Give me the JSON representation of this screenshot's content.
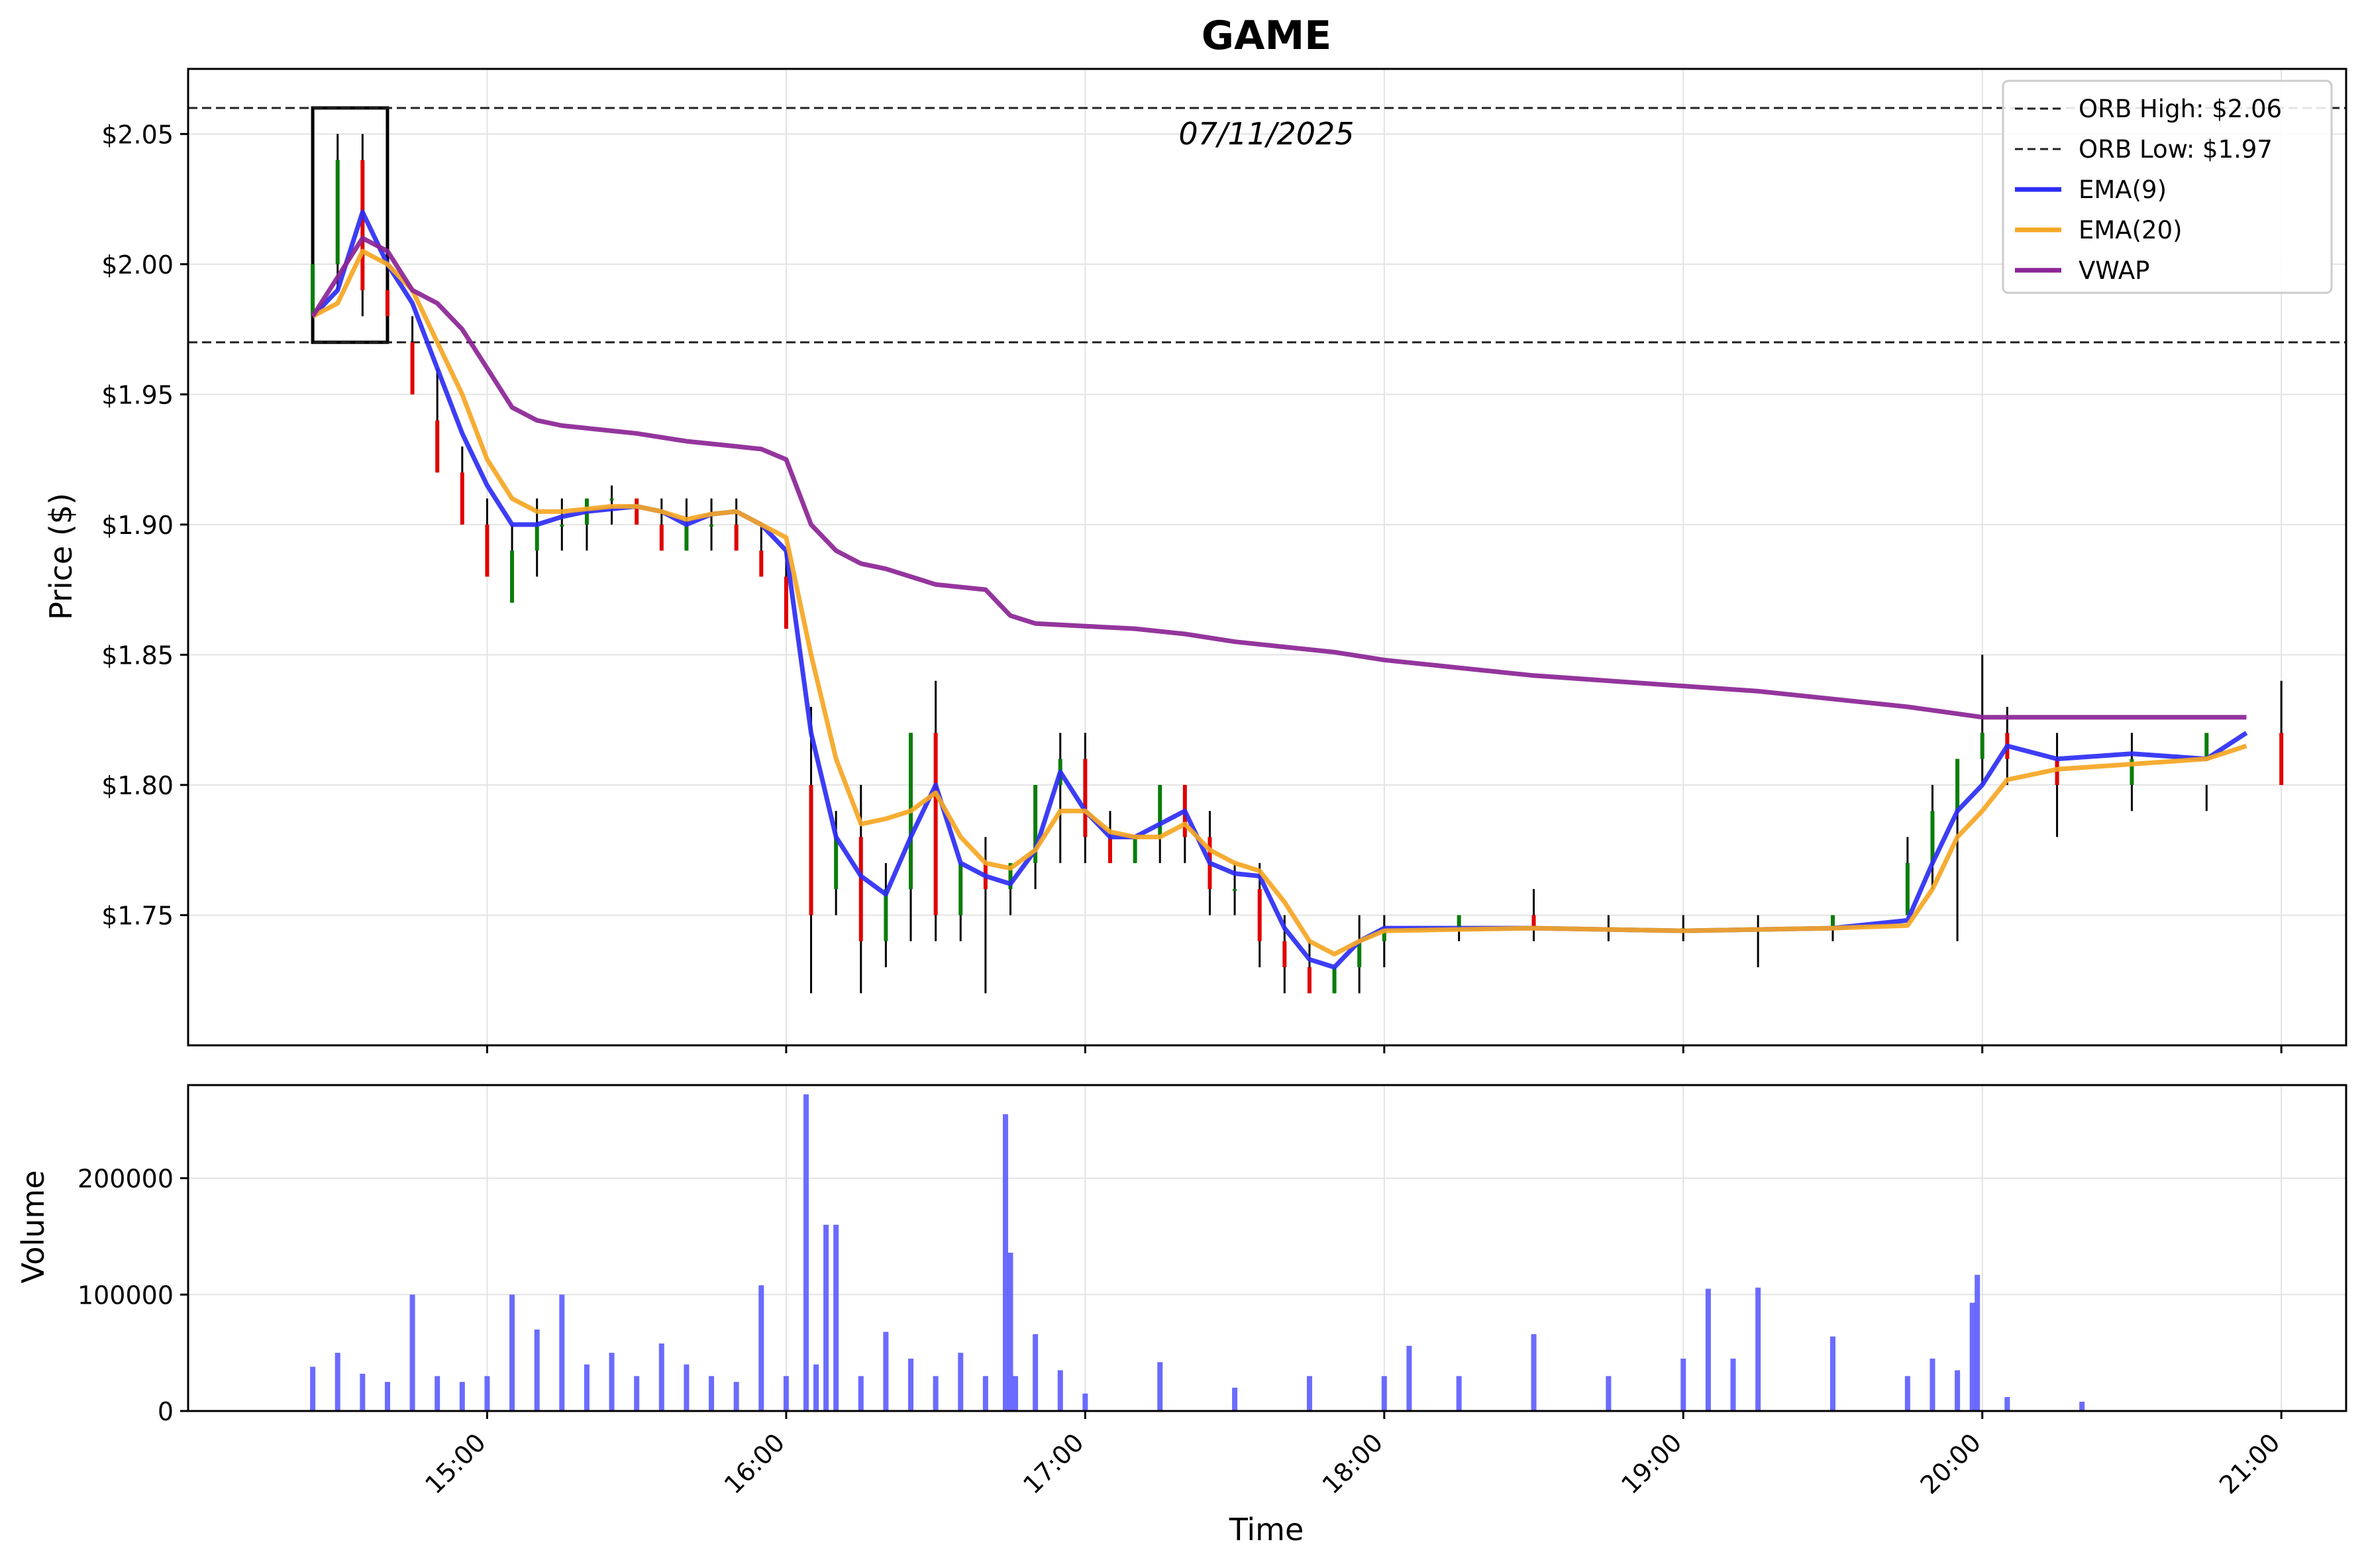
{
  "chart_data": [
    {
      "type": "candlestick",
      "title": "GAME",
      "annotation": "07/11/2025",
      "ylabel": "Price ($)",
      "ylim": [
        1.7,
        2.075
      ],
      "ytick_values": [
        1.75,
        1.8,
        1.85,
        1.9,
        1.95,
        2.0,
        2.05
      ],
      "ytick_labels": [
        "$1.75",
        "$1.80",
        "$1.85",
        "$1.90",
        "$1.95",
        "$2.00",
        "$2.05"
      ],
      "xlim": [
        "14:00",
        "21:13"
      ],
      "xtick_values": [
        "15:00",
        "16:00",
        "17:00",
        "18:00",
        "19:00",
        "20:00",
        "21:00"
      ],
      "grid": true,
      "legend_position": "top-right",
      "orb": {
        "high": 2.06,
        "low": 1.97,
        "box_start": "14:25",
        "box_end": "14:40",
        "label_high": "ORB High: $2.06",
        "label_low": "ORB Low: $1.97"
      },
      "candles": {
        "x": [
          "14:25",
          "14:30",
          "14:35",
          "14:40",
          "14:45",
          "14:50",
          "14:55",
          "15:00",
          "15:05",
          "15:10",
          "15:15",
          "15:20",
          "15:25",
          "15:30",
          "15:35",
          "15:40",
          "15:45",
          "15:50",
          "15:55",
          "16:00",
          "16:05",
          "16:10",
          "16:15",
          "16:20",
          "16:25",
          "16:30",
          "16:35",
          "16:40",
          "16:45",
          "16:50",
          "16:55",
          "17:00",
          "17:05",
          "17:10",
          "17:15",
          "17:20",
          "17:25",
          "17:30",
          "17:35",
          "17:40",
          "17:45",
          "17:50",
          "17:55",
          "18:00",
          "18:15",
          "18:30",
          "18:45",
          "19:00",
          "19:15",
          "19:30",
          "19:45",
          "19:50",
          "19:55",
          "20:00",
          "20:05",
          "20:15",
          "20:30",
          "20:45",
          "21:00"
        ],
        "open": [
          1.98,
          2.0,
          2.04,
          1.99,
          1.97,
          1.94,
          1.92,
          1.9,
          1.87,
          1.89,
          1.9,
          1.9,
          1.91,
          1.91,
          1.9,
          1.89,
          1.9,
          1.9,
          1.89,
          1.88,
          1.8,
          1.76,
          1.78,
          1.74,
          1.76,
          1.82,
          1.75,
          1.77,
          1.76,
          1.77,
          1.8,
          1.81,
          1.78,
          1.77,
          1.78,
          1.8,
          1.78,
          1.76,
          1.76,
          1.74,
          1.73,
          1.72,
          1.73,
          1.74,
          1.745,
          1.75,
          1.745,
          1.745,
          1.745,
          1.745,
          1.75,
          1.77,
          1.79,
          1.81,
          1.82,
          1.81,
          1.8,
          1.81,
          1.82
        ],
        "high": [
          2.0,
          2.05,
          2.05,
          2.0,
          1.98,
          1.96,
          1.93,
          1.91,
          1.9,
          1.91,
          1.91,
          1.91,
          1.915,
          1.91,
          1.91,
          1.91,
          1.91,
          1.91,
          1.9,
          1.89,
          1.83,
          1.79,
          1.8,
          1.77,
          1.82,
          1.84,
          1.77,
          1.78,
          1.77,
          1.79,
          1.82,
          1.82,
          1.79,
          1.78,
          1.8,
          1.8,
          1.79,
          1.77,
          1.77,
          1.75,
          1.74,
          1.73,
          1.75,
          1.75,
          1.75,
          1.76,
          1.75,
          1.75,
          1.75,
          1.75,
          1.78,
          1.8,
          1.81,
          1.85,
          1.83,
          1.82,
          1.82,
          1.8,
          1.84
        ],
        "low": [
          1.97,
          1.99,
          1.98,
          1.97,
          1.95,
          1.92,
          1.9,
          1.88,
          1.87,
          1.88,
          1.89,
          1.89,
          1.9,
          1.9,
          1.89,
          1.89,
          1.89,
          1.89,
          1.88,
          1.86,
          1.72,
          1.75,
          1.72,
          1.73,
          1.74,
          1.74,
          1.74,
          1.72,
          1.75,
          1.76,
          1.77,
          1.77,
          1.77,
          1.77,
          1.77,
          1.77,
          1.75,
          1.75,
          1.73,
          1.72,
          1.72,
          1.72,
          1.72,
          1.73,
          1.74,
          1.74,
          1.74,
          1.74,
          1.73,
          1.74,
          1.75,
          1.76,
          1.74,
          1.8,
          1.8,
          1.78,
          1.79,
          1.79,
          1.8
        ],
        "close": [
          2.0,
          2.04,
          1.99,
          1.98,
          1.95,
          1.92,
          1.9,
          1.88,
          1.89,
          1.9,
          1.9,
          1.91,
          1.91,
          1.9,
          1.89,
          1.9,
          1.9,
          1.89,
          1.88,
          1.86,
          1.75,
          1.78,
          1.74,
          1.76,
          1.82,
          1.75,
          1.77,
          1.76,
          1.77,
          1.8,
          1.81,
          1.78,
          1.77,
          1.78,
          1.8,
          1.78,
          1.76,
          1.76,
          1.74,
          1.73,
          1.72,
          1.73,
          1.74,
          1.745,
          1.75,
          1.745,
          1.745,
          1.745,
          1.745,
          1.75,
          1.77,
          1.79,
          1.81,
          1.82,
          1.81,
          1.8,
          1.81,
          1.82,
          1.8
        ]
      },
      "series": [
        {
          "name": "EMA(9)",
          "color": "#2c2cf5",
          "x": [
            "14:25",
            "14:30",
            "14:35",
            "14:40",
            "14:45",
            "14:50",
            "14:55",
            "15:00",
            "15:05",
            "15:10",
            "15:15",
            "15:20",
            "15:25",
            "15:30",
            "15:35",
            "15:40",
            "15:45",
            "15:50",
            "15:55",
            "16:00",
            "16:05",
            "16:10",
            "16:15",
            "16:20",
            "16:25",
            "16:30",
            "16:35",
            "16:40",
            "16:45",
            "16:50",
            "16:55",
            "17:00",
            "17:05",
            "17:10",
            "17:15",
            "17:20",
            "17:25",
            "17:30",
            "17:35",
            "17:40",
            "17:45",
            "17:50",
            "17:55",
            "18:00",
            "18:30",
            "19:00",
            "19:30",
            "19:45",
            "19:50",
            "19:55",
            "20:00",
            "20:05",
            "20:15",
            "20:30",
            "20:45",
            "20:53"
          ],
          "y": [
            1.98,
            1.99,
            2.02,
            2.0,
            1.985,
            1.96,
            1.935,
            1.915,
            1.9,
            1.9,
            1.903,
            1.905,
            1.906,
            1.907,
            1.905,
            1.9,
            1.904,
            1.905,
            1.9,
            1.89,
            1.82,
            1.78,
            1.765,
            1.758,
            1.78,
            1.8,
            1.77,
            1.765,
            1.762,
            1.775,
            1.805,
            1.79,
            1.78,
            1.78,
            1.785,
            1.79,
            1.77,
            1.766,
            1.765,
            1.745,
            1.733,
            1.73,
            1.74,
            1.745,
            1.745,
            1.744,
            1.745,
            1.748,
            1.77,
            1.79,
            1.8,
            1.815,
            1.81,
            1.812,
            1.81,
            1.82
          ]
        },
        {
          "name": "EMA(20)",
          "color": "#f5a623",
          "x": [
            "14:25",
            "14:30",
            "14:35",
            "14:40",
            "14:45",
            "14:50",
            "14:55",
            "15:00",
            "15:05",
            "15:10",
            "15:15",
            "15:20",
            "15:25",
            "15:30",
            "15:35",
            "15:40",
            "15:45",
            "15:50",
            "15:55",
            "16:00",
            "16:05",
            "16:10",
            "16:15",
            "16:20",
            "16:25",
            "16:30",
            "16:35",
            "16:40",
            "16:45",
            "16:50",
            "16:55",
            "17:00",
            "17:05",
            "17:10",
            "17:15",
            "17:20",
            "17:25",
            "17:30",
            "17:35",
            "17:40",
            "17:45",
            "17:50",
            "17:55",
            "18:00",
            "18:30",
            "19:00",
            "19:30",
            "19:45",
            "19:50",
            "19:55",
            "20:00",
            "20:05",
            "20:15",
            "20:30",
            "20:45",
            "20:53"
          ],
          "y": [
            1.98,
            1.985,
            2.005,
            2.0,
            1.99,
            1.97,
            1.95,
            1.925,
            1.91,
            1.905,
            1.905,
            1.906,
            1.907,
            1.907,
            1.905,
            1.902,
            1.904,
            1.905,
            1.9,
            1.895,
            1.85,
            1.81,
            1.785,
            1.787,
            1.79,
            1.797,
            1.78,
            1.77,
            1.768,
            1.775,
            1.79,
            1.79,
            1.782,
            1.78,
            1.78,
            1.785,
            1.775,
            1.77,
            1.767,
            1.755,
            1.74,
            1.735,
            1.74,
            1.744,
            1.745,
            1.744,
            1.745,
            1.746,
            1.76,
            1.78,
            1.79,
            1.802,
            1.806,
            1.808,
            1.81,
            1.815
          ]
        },
        {
          "name": "VWAP",
          "color": "#8b2495",
          "x": [
            "14:25",
            "14:30",
            "14:35",
            "14:40",
            "14:45",
            "14:50",
            "14:55",
            "15:00",
            "15:05",
            "15:10",
            "15:15",
            "15:20",
            "15:25",
            "15:30",
            "15:40",
            "15:50",
            "15:55",
            "16:00",
            "16:05",
            "16:10",
            "16:15",
            "16:20",
            "16:25",
            "16:30",
            "16:40",
            "16:45",
            "16:50",
            "17:00",
            "17:10",
            "17:20",
            "17:30",
            "17:40",
            "17:50",
            "18:00",
            "18:15",
            "18:30",
            "18:45",
            "19:00",
            "19:15",
            "19:30",
            "19:45",
            "20:00",
            "20:30",
            "20:53"
          ],
          "y": [
            1.98,
            1.995,
            2.01,
            2.005,
            1.99,
            1.985,
            1.975,
            1.96,
            1.945,
            1.94,
            1.938,
            1.937,
            1.936,
            1.935,
            1.932,
            1.93,
            1.929,
            1.925,
            1.9,
            1.89,
            1.885,
            1.883,
            1.88,
            1.877,
            1.875,
            1.865,
            1.862,
            1.861,
            1.86,
            1.858,
            1.855,
            1.853,
            1.851,
            1.848,
            1.845,
            1.842,
            1.84,
            1.838,
            1.836,
            1.833,
            1.83,
            1.826,
            1.826,
            1.826
          ]
        }
      ],
      "legend": [
        "ORB High: $2.06",
        "ORB Low: $1.97",
        "EMA(9)",
        "EMA(20)",
        "VWAP"
      ]
    },
    {
      "type": "bar",
      "ylabel": "Volume",
      "xlabel": "Time",
      "ylim": [
        0,
        280000
      ],
      "ytick_values": [
        0,
        100000,
        200000
      ],
      "ytick_labels": [
        "0",
        "100000",
        "200000"
      ],
      "xtick_labels": [
        "15:00",
        "16:00",
        "17:00",
        "18:00",
        "19:00",
        "20:00",
        "21:00"
      ],
      "color": "#5b5bff",
      "x": [
        "14:25",
        "14:30",
        "14:35",
        "14:40",
        "14:45",
        "14:50",
        "14:55",
        "15:00",
        "15:05",
        "15:10",
        "15:15",
        "15:20",
        "15:25",
        "15:30",
        "15:35",
        "15:40",
        "15:45",
        "15:50",
        "15:55",
        "16:00",
        "16:04",
        "16:06",
        "16:08",
        "16:10",
        "16:15",
        "16:20",
        "16:25",
        "16:30",
        "16:35",
        "16:40",
        "16:44",
        "16:45",
        "16:46",
        "16:50",
        "16:55",
        "17:00",
        "17:15",
        "17:30",
        "17:45",
        "18:00",
        "18:05",
        "18:15",
        "18:30",
        "18:45",
        "19:00",
        "19:05",
        "19:10",
        "19:15",
        "19:30",
        "19:45",
        "19:50",
        "19:55",
        "19:58",
        "19:59",
        "20:05",
        "20:20"
      ],
      "values": [
        38000,
        50000,
        32000,
        25000,
        100000,
        30000,
        25000,
        30000,
        100000,
        70000,
        100000,
        40000,
        50000,
        30000,
        58000,
        40000,
        30000,
        25000,
        108000,
        30000,
        272000,
        40000,
        160000,
        160000,
        30000,
        68000,
        45000,
        30000,
        50000,
        30000,
        255000,
        136000,
        30000,
        66000,
        35000,
        15000,
        42000,
        20000,
        30000,
        30000,
        56000,
        30000,
        66000,
        30000,
        45000,
        105000,
        45000,
        106000,
        64000,
        30000,
        45000,
        35000,
        93000,
        117000,
        12000,
        8000
      ]
    }
  ]
}
